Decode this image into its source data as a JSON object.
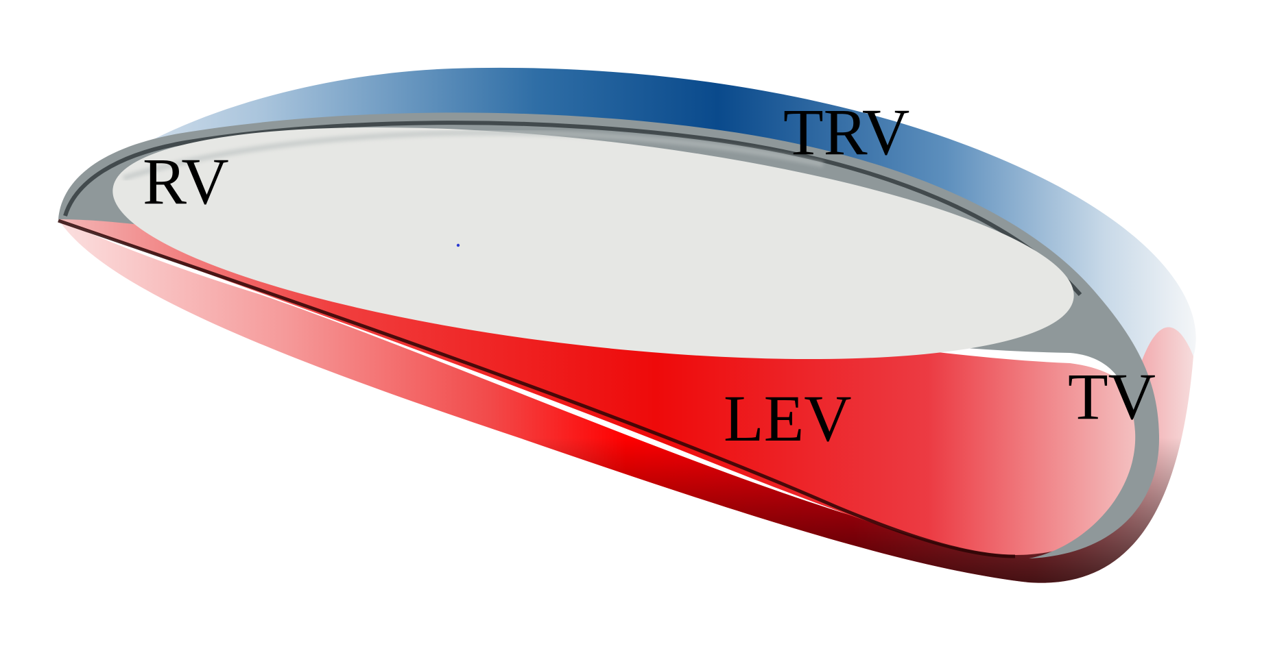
{
  "labels": {
    "rv": "RV",
    "trv": "TRV",
    "lev": "LEV",
    "tv": "TV"
  },
  "colors": {
    "blue_band": "#0b4f91",
    "red_band": "#ff0000",
    "cavity": "#e6e7e4",
    "rim": "#4a5457",
    "dark_edge": "#1a0000"
  }
}
